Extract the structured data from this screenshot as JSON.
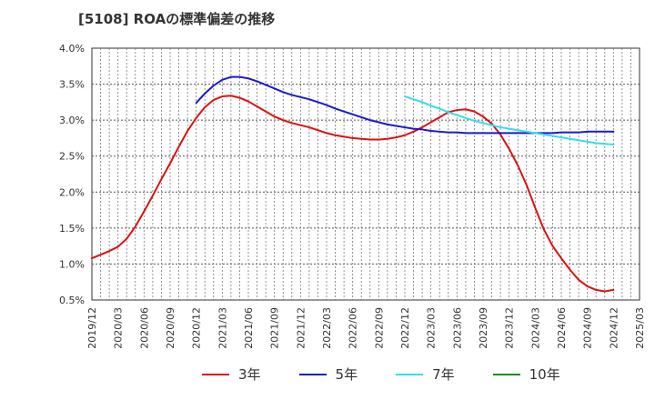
{
  "chart_data": {
    "type": "line",
    "title": "[5108]  ROAの標準偏差の推移",
    "xlabel": "",
    "ylabel": "",
    "ylim": [
      0.005,
      0.04
    ],
    "y_ticks": [
      "0.5%",
      "1.0%",
      "1.5%",
      "2.0%",
      "2.5%",
      "3.0%",
      "3.5%",
      "4.0%"
    ],
    "x_ticks": [
      "2019/12",
      "2020/03",
      "2020/06",
      "2020/09",
      "2020/12",
      "2021/03",
      "2021/06",
      "2021/09",
      "2021/12",
      "2022/03",
      "2022/06",
      "2022/09",
      "2022/12",
      "2023/03",
      "2023/06",
      "2023/09",
      "2023/12",
      "2024/03",
      "2024/06",
      "2024/09",
      "2024/12",
      "2025/03"
    ],
    "x_range": [
      "2019/12",
      "2025/03"
    ],
    "grid": true,
    "legend_position": "bottom",
    "series": [
      {
        "name": "3年",
        "color": "#dd1111",
        "points": [
          [
            "2019/12",
            0.0108
          ],
          [
            "2020/01",
            0.0113
          ],
          [
            "2020/02",
            0.0118
          ],
          [
            "2020/03",
            0.0124
          ],
          [
            "2020/04",
            0.0135
          ],
          [
            "2020/05",
            0.0152
          ],
          [
            "2020/06",
            0.0173
          ],
          [
            "2020/07",
            0.0195
          ],
          [
            "2020/08",
            0.0218
          ],
          [
            "2020/09",
            0.024
          ],
          [
            "2020/10",
            0.0263
          ],
          [
            "2020/11",
            0.0285
          ],
          [
            "2020/12",
            0.0303
          ],
          [
            "2021/01",
            0.0318
          ],
          [
            "2021/02",
            0.0328
          ],
          [
            "2021/03",
            0.0333
          ],
          [
            "2021/04",
            0.0334
          ],
          [
            "2021/05",
            0.0331
          ],
          [
            "2021/06",
            0.0326
          ],
          [
            "2021/07",
            0.0319
          ],
          [
            "2021/08",
            0.0312
          ],
          [
            "2021/09",
            0.0305
          ],
          [
            "2021/10",
            0.03
          ],
          [
            "2021/11",
            0.0296
          ],
          [
            "2021/12",
            0.0293
          ],
          [
            "2022/01",
            0.029
          ],
          [
            "2022/02",
            0.0286
          ],
          [
            "2022/03",
            0.0282
          ],
          [
            "2022/04",
            0.0279
          ],
          [
            "2022/05",
            0.0277
          ],
          [
            "2022/06",
            0.0275
          ],
          [
            "2022/07",
            0.0274
          ],
          [
            "2022/08",
            0.0273
          ],
          [
            "2022/09",
            0.0273
          ],
          [
            "2022/10",
            0.0274
          ],
          [
            "2022/11",
            0.0276
          ],
          [
            "2022/12",
            0.0279
          ],
          [
            "2023/01",
            0.0284
          ],
          [
            "2023/02",
            0.029
          ],
          [
            "2023/03",
            0.0297
          ],
          [
            "2023/04",
            0.0304
          ],
          [
            "2023/05",
            0.0311
          ],
          [
            "2023/06",
            0.0314
          ],
          [
            "2023/07",
            0.0315
          ],
          [
            "2023/08",
            0.0312
          ],
          [
            "2023/09",
            0.0305
          ],
          [
            "2023/10",
            0.0295
          ],
          [
            "2023/11",
            0.028
          ],
          [
            "2023/12",
            0.026
          ],
          [
            "2024/01",
            0.0237
          ],
          [
            "2024/02",
            0.021
          ],
          [
            "2024/03",
            0.0178
          ],
          [
            "2024/04",
            0.0148
          ],
          [
            "2024/05",
            0.0125
          ],
          [
            "2024/06",
            0.0108
          ],
          [
            "2024/07",
            0.0092
          ],
          [
            "2024/08",
            0.0078
          ],
          [
            "2024/09",
            0.0069
          ],
          [
            "2024/10",
            0.0064
          ],
          [
            "2024/11",
            0.0062
          ],
          [
            "2024/12",
            0.0064
          ]
        ]
      },
      {
        "name": "5年",
        "color": "#1a1acc",
        "points": [
          [
            "2020/12",
            0.0324
          ],
          [
            "2021/01",
            0.0337
          ],
          [
            "2021/02",
            0.0348
          ],
          [
            "2021/03",
            0.0356
          ],
          [
            "2021/04",
            0.036
          ],
          [
            "2021/05",
            0.036
          ],
          [
            "2021/06",
            0.0358
          ],
          [
            "2021/07",
            0.0354
          ],
          [
            "2021/08",
            0.0349
          ],
          [
            "2021/09",
            0.0344
          ],
          [
            "2021/10",
            0.0339
          ],
          [
            "2021/11",
            0.0335
          ],
          [
            "2021/12",
            0.0332
          ],
          [
            "2022/01",
            0.0329
          ],
          [
            "2022/02",
            0.0325
          ],
          [
            "2022/03",
            0.0321
          ],
          [
            "2022/04",
            0.0316
          ],
          [
            "2022/05",
            0.0312
          ],
          [
            "2022/06",
            0.0308
          ],
          [
            "2022/07",
            0.0304
          ],
          [
            "2022/08",
            0.03
          ],
          [
            "2022/09",
            0.0297
          ],
          [
            "2022/10",
            0.0294
          ],
          [
            "2022/11",
            0.0292
          ],
          [
            "2022/12",
            0.029
          ],
          [
            "2023/01",
            0.0288
          ],
          [
            "2023/02",
            0.0287
          ],
          [
            "2023/03",
            0.0285
          ],
          [
            "2023/04",
            0.0284
          ],
          [
            "2023/05",
            0.0283
          ],
          [
            "2023/06",
            0.0283
          ],
          [
            "2023/07",
            0.0282
          ],
          [
            "2023/08",
            0.0282
          ],
          [
            "2023/09",
            0.0282
          ],
          [
            "2023/10",
            0.0282
          ],
          [
            "2023/11",
            0.0282
          ],
          [
            "2023/12",
            0.0282
          ],
          [
            "2024/01",
            0.0282
          ],
          [
            "2024/02",
            0.0282
          ],
          [
            "2024/03",
            0.0282
          ],
          [
            "2024/04",
            0.0282
          ],
          [
            "2024/05",
            0.0282
          ],
          [
            "2024/06",
            0.0283
          ],
          [
            "2024/07",
            0.0283
          ],
          [
            "2024/08",
            0.0283
          ],
          [
            "2024/09",
            0.0284
          ],
          [
            "2024/10",
            0.0284
          ],
          [
            "2024/11",
            0.0284
          ],
          [
            "2024/12",
            0.0284
          ]
        ]
      },
      {
        "name": "7年",
        "color": "#33ddee",
        "points": [
          [
            "2022/12",
            0.0333
          ],
          [
            "2023/01",
            0.0329
          ],
          [
            "2023/02",
            0.0325
          ],
          [
            "2023/03",
            0.032
          ],
          [
            "2023/04",
            0.0316
          ],
          [
            "2023/05",
            0.0311
          ],
          [
            "2023/06",
            0.0307
          ],
          [
            "2023/07",
            0.0303
          ],
          [
            "2023/08",
            0.0299
          ],
          [
            "2023/09",
            0.0296
          ],
          [
            "2023/10",
            0.0293
          ],
          [
            "2023/11",
            0.029
          ],
          [
            "2023/12",
            0.0288
          ],
          [
            "2024/01",
            0.0286
          ],
          [
            "2024/02",
            0.0284
          ],
          [
            "2024/03",
            0.0282
          ],
          [
            "2024/04",
            0.028
          ],
          [
            "2024/05",
            0.0278
          ],
          [
            "2024/06",
            0.0276
          ],
          [
            "2024/07",
            0.0274
          ],
          [
            "2024/08",
            0.0272
          ],
          [
            "2024/09",
            0.027
          ],
          [
            "2024/10",
            0.0268
          ],
          [
            "2024/11",
            0.0267
          ],
          [
            "2024/12",
            0.0266
          ]
        ]
      },
      {
        "name": "10年",
        "color": "#228822",
        "points": []
      }
    ]
  }
}
